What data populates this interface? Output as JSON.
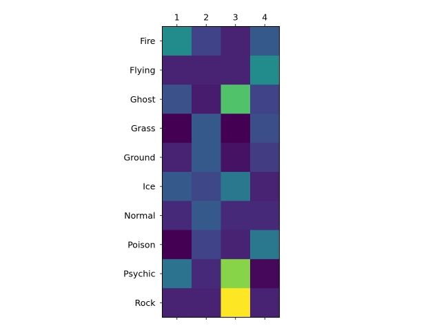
{
  "chart_data": {
    "type": "heatmap",
    "title": "",
    "xlabel": "",
    "ylabel": "",
    "columns": [
      "1",
      "2",
      "3",
      "4"
    ],
    "rows": [
      "Fire",
      "Flying",
      "Ghost",
      "Grass",
      "Ground",
      "Ice",
      "Normal",
      "Poison",
      "Psychic",
      "Rock"
    ],
    "values": [
      [
        0.48,
        0.2,
        0.1,
        0.28
      ],
      [
        0.1,
        0.1,
        0.1,
        0.48
      ],
      [
        0.25,
        0.08,
        0.72,
        0.2
      ],
      [
        0.0,
        0.28,
        0.0,
        0.24
      ],
      [
        0.1,
        0.28,
        0.05,
        0.18
      ],
      [
        0.28,
        0.22,
        0.4,
        0.1
      ],
      [
        0.12,
        0.28,
        0.12,
        0.12
      ],
      [
        0.0,
        0.2,
        0.1,
        0.4
      ],
      [
        0.38,
        0.12,
        0.82,
        0.02
      ],
      [
        0.1,
        0.1,
        1.0,
        0.1
      ]
    ],
    "value_range": [
      0,
      1
    ],
    "colormap": "viridis",
    "x_ticks_position": "top",
    "colorbar": false,
    "grid": false
  }
}
